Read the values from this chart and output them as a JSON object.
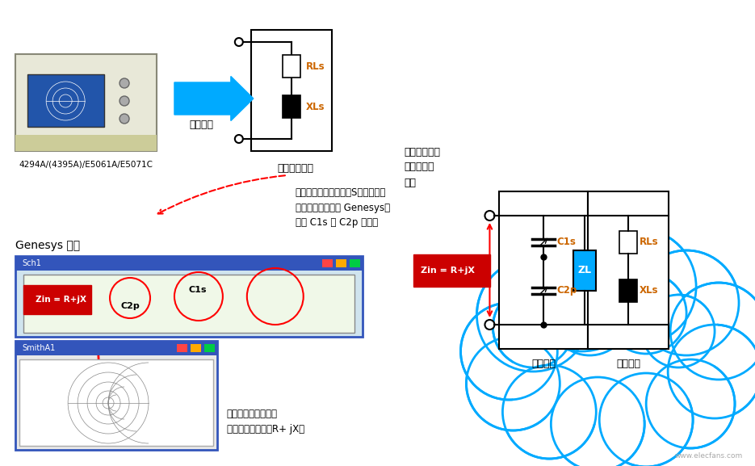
{
  "bg_color": "#ffffff",
  "title": "",
  "instrument_label": "4294A/(4395A)/E5061A/E5071C",
  "genesys_label": "Genesys 屏幕",
  "antenna_coil_label": "天线线圈本身",
  "actual_measure_label": "实际测量",
  "actual_result_label": "实际测量结果\n的环路天线\n文件",
  "simulate_label": "可以仿真天线与匹配\n电路耦合时的阻抗R+ jX。",
  "dashed_text": "一旦天线线圈自行完成S参数测量，\n便将测量结果导入 Genesys，\n用于 C1s 和 C2p 调谐。",
  "matching_circuit_label": "匹配电路",
  "antenna_coil_label2": "天线线圈",
  "zin_label": "Zin = R+jX",
  "zin_label2": "Zin = R+jX",
  "RLs_label": "RLs",
  "XLs_label": "XLs",
  "C1s_label": "C1s",
  "C2p_label": "C2p",
  "ZL_label": "ZL",
  "cloud_color": "#00aaff",
  "arrow_blue_color": "#00aaff",
  "arrow_red_color": "#cc0000",
  "zin_box_color": "#cc0000",
  "ZL_box_color": "#00aaff",
  "orange_text_color": "#cc6600",
  "screen_bg": "#d4e8f0",
  "screen_border": "#0000cc"
}
